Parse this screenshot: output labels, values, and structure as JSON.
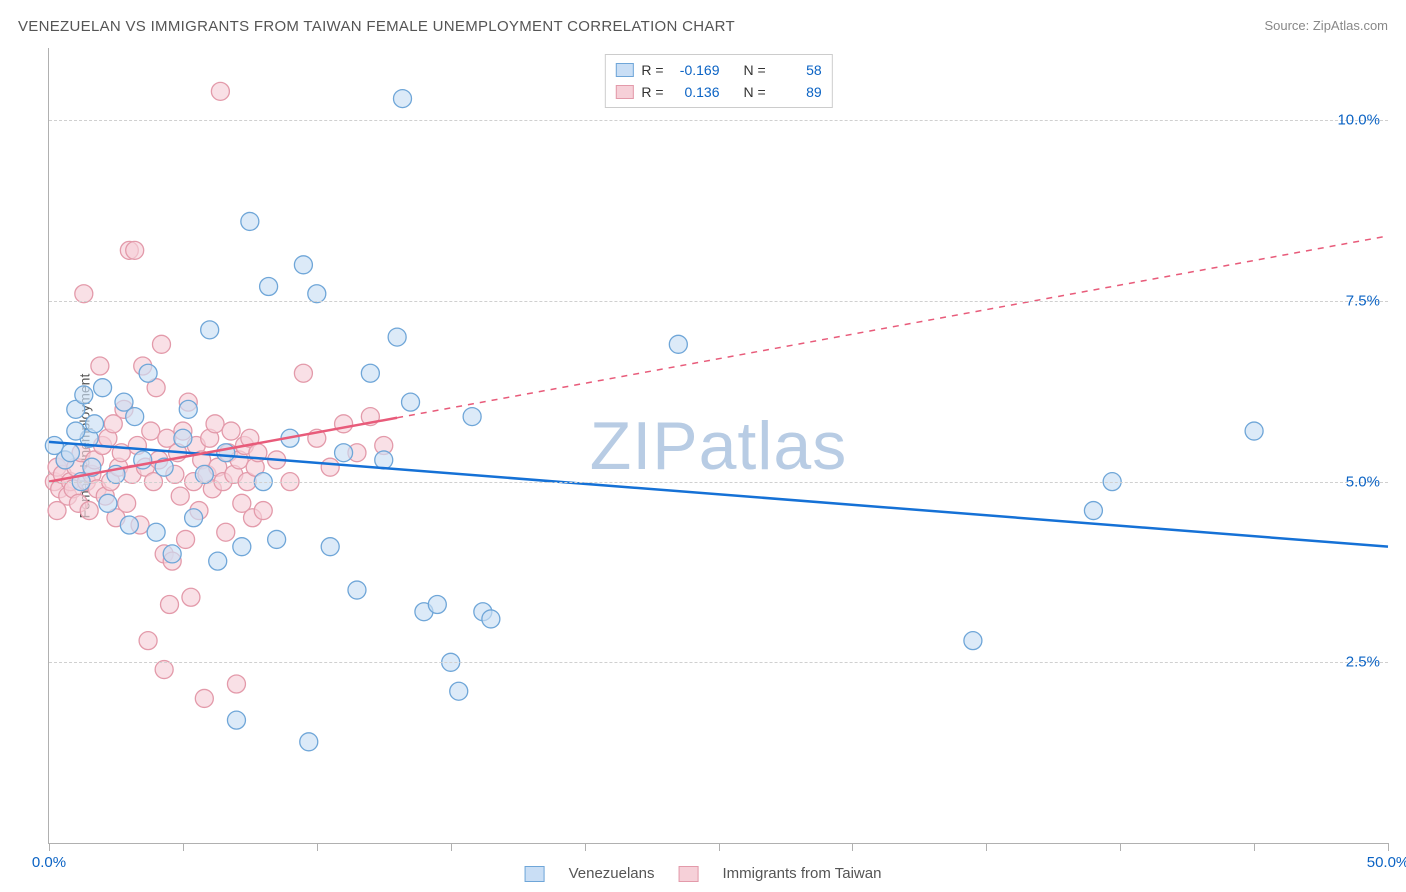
{
  "title": "VENEZUELAN VS IMMIGRANTS FROM TAIWAN FEMALE UNEMPLOYMENT CORRELATION CHART",
  "source": "Source: ZipAtlas.com",
  "y_axis_label": "Female Unemployment",
  "watermark_z": "ZIP",
  "watermark_rest": "atlas",
  "watermark_color": "#b8cce4",
  "chart": {
    "type": "scatter",
    "xlim": [
      0.0,
      50.0
    ],
    "ylim": [
      0.0,
      11.0
    ],
    "y_ticks": [
      2.5,
      5.0,
      7.5,
      10.0
    ],
    "y_tick_labels": [
      "2.5%",
      "5.0%",
      "7.5%",
      "10.0%"
    ],
    "x_ticks": [
      0,
      5,
      10,
      15,
      20,
      25,
      30,
      35,
      40,
      45,
      50
    ],
    "x_min_label": "0.0%",
    "x_max_label": "50.0%",
    "x_label_color": "#0b63c4",
    "y_label_color": "#0b63c4",
    "grid_color": "#d0d0d0",
    "background_color": "#ffffff",
    "marker_radius": 9,
    "marker_stroke_width": 1.3,
    "trend_width": 2.5,
    "series": [
      {
        "key": "venezuelans",
        "label": "Venezuelans",
        "fill": "#c9def5",
        "stroke": "#6fa6d8",
        "swatch_fill": "#c9def5",
        "swatch_border": "#6fa6d8",
        "trend_color": "#1571d6",
        "trend": {
          "x1": 0.0,
          "y1": 5.55,
          "x2": 50.0,
          "y2": 4.1,
          "dash_from_x": 50.0
        },
        "R": "-0.169",
        "N": "58",
        "points": [
          [
            0.2,
            5.5
          ],
          [
            0.6,
            5.3
          ],
          [
            0.8,
            5.4
          ],
          [
            1.0,
            6.0
          ],
          [
            1.2,
            5.0
          ],
          [
            1.5,
            5.6
          ],
          [
            1.6,
            5.2
          ],
          [
            1.7,
            5.8
          ],
          [
            2.0,
            6.3
          ],
          [
            2.2,
            4.7
          ],
          [
            2.5,
            5.1
          ],
          [
            2.8,
            6.1
          ],
          [
            3.0,
            4.4
          ],
          [
            3.2,
            5.9
          ],
          [
            3.5,
            5.3
          ],
          [
            3.7,
            6.5
          ],
          [
            4.0,
            4.3
          ],
          [
            4.3,
            5.2
          ],
          [
            4.6,
            4.0
          ],
          [
            5.0,
            5.6
          ],
          [
            5.2,
            6.0
          ],
          [
            5.4,
            4.5
          ],
          [
            5.8,
            5.1
          ],
          [
            6.0,
            7.1
          ],
          [
            6.3,
            3.9
          ],
          [
            6.6,
            5.4
          ],
          [
            7.0,
            1.7
          ],
          [
            7.2,
            4.1
          ],
          [
            7.5,
            8.6
          ],
          [
            8.0,
            5.0
          ],
          [
            8.2,
            7.7
          ],
          [
            8.5,
            4.2
          ],
          [
            9.0,
            5.6
          ],
          [
            9.5,
            8.0
          ],
          [
            9.7,
            1.4
          ],
          [
            10.0,
            7.6
          ],
          [
            10.5,
            4.1
          ],
          [
            11.0,
            5.4
          ],
          [
            11.5,
            3.5
          ],
          [
            12.0,
            6.5
          ],
          [
            12.5,
            5.3
          ],
          [
            13.0,
            7.0
          ],
          [
            13.2,
            10.3
          ],
          [
            13.5,
            6.1
          ],
          [
            14.0,
            3.2
          ],
          [
            14.5,
            3.3
          ],
          [
            15.0,
            2.5
          ],
          [
            15.3,
            2.1
          ],
          [
            15.8,
            5.9
          ],
          [
            16.2,
            3.2
          ],
          [
            16.5,
            3.1
          ],
          [
            23.5,
            6.9
          ],
          [
            34.5,
            2.8
          ],
          [
            39.0,
            4.6
          ],
          [
            39.7,
            5.0
          ],
          [
            45.0,
            5.7
          ],
          [
            1.0,
            5.7
          ],
          [
            1.3,
            6.2
          ]
        ]
      },
      {
        "key": "taiwan",
        "label": "Immigrants from Taiwan",
        "fill": "#f6d0d8",
        "stroke": "#e39aaa",
        "swatch_fill": "#f6d0d8",
        "swatch_border": "#e39aaa",
        "trend_color": "#e85b7a",
        "trend": {
          "x1": 0.0,
          "y1": 5.0,
          "x2": 50.0,
          "y2": 8.4,
          "dash_from_x": 13.0
        },
        "R": "0.136",
        "N": "89",
        "points": [
          [
            0.2,
            5.0
          ],
          [
            0.3,
            5.2
          ],
          [
            0.4,
            4.9
          ],
          [
            0.5,
            5.1
          ],
          [
            0.6,
            5.3
          ],
          [
            0.7,
            4.8
          ],
          [
            0.8,
            5.0
          ],
          [
            0.9,
            4.9
          ],
          [
            1.0,
            5.2
          ],
          [
            1.1,
            4.7
          ],
          [
            1.2,
            5.4
          ],
          [
            1.3,
            7.6
          ],
          [
            1.4,
            5.0
          ],
          [
            1.5,
            4.6
          ],
          [
            1.6,
            5.1
          ],
          [
            1.7,
            5.3
          ],
          [
            1.8,
            4.9
          ],
          [
            1.9,
            6.6
          ],
          [
            2.0,
            5.5
          ],
          [
            2.1,
            4.8
          ],
          [
            2.2,
            5.6
          ],
          [
            2.3,
            5.0
          ],
          [
            2.4,
            5.8
          ],
          [
            2.5,
            4.5
          ],
          [
            2.6,
            5.2
          ],
          [
            2.7,
            5.4
          ],
          [
            2.8,
            6.0
          ],
          [
            2.9,
            4.7
          ],
          [
            3.0,
            8.2
          ],
          [
            3.1,
            5.1
          ],
          [
            3.2,
            8.2
          ],
          [
            3.3,
            5.5
          ],
          [
            3.4,
            4.4
          ],
          [
            3.5,
            6.6
          ],
          [
            3.6,
            5.2
          ],
          [
            3.7,
            2.8
          ],
          [
            3.8,
            5.7
          ],
          [
            3.9,
            5.0
          ],
          [
            4.0,
            6.3
          ],
          [
            4.1,
            5.3
          ],
          [
            4.2,
            6.9
          ],
          [
            4.3,
            4.0
          ],
          [
            4.4,
            5.6
          ],
          [
            4.5,
            3.3
          ],
          [
            4.6,
            3.9
          ],
          [
            4.7,
            5.1
          ],
          [
            4.8,
            5.4
          ],
          [
            4.9,
            4.8
          ],
          [
            5.0,
            5.7
          ],
          [
            5.1,
            4.2
          ],
          [
            5.2,
            6.1
          ],
          [
            5.3,
            3.4
          ],
          [
            5.4,
            5.0
          ],
          [
            5.5,
            5.5
          ],
          [
            5.6,
            4.6
          ],
          [
            5.7,
            5.3
          ],
          [
            5.8,
            2.0
          ],
          [
            5.9,
            5.1
          ],
          [
            6.0,
            5.6
          ],
          [
            6.1,
            4.9
          ],
          [
            6.2,
            5.8
          ],
          [
            6.3,
            5.2
          ],
          [
            6.4,
            10.4
          ],
          [
            6.5,
            5.0
          ],
          [
            6.6,
            4.3
          ],
          [
            6.7,
            5.4
          ],
          [
            6.8,
            5.7
          ],
          [
            6.9,
            5.1
          ],
          [
            7.0,
            2.2
          ],
          [
            7.1,
            5.3
          ],
          [
            7.2,
            4.7
          ],
          [
            7.3,
            5.5
          ],
          [
            7.4,
            5.0
          ],
          [
            7.5,
            5.6
          ],
          [
            7.6,
            4.5
          ],
          [
            7.7,
            5.2
          ],
          [
            7.8,
            5.4
          ],
          [
            8.0,
            4.6
          ],
          [
            8.5,
            5.3
          ],
          [
            9.0,
            5.0
          ],
          [
            9.5,
            6.5
          ],
          [
            10.0,
            5.6
          ],
          [
            10.5,
            5.2
          ],
          [
            11.0,
            5.8
          ],
          [
            11.5,
            5.4
          ],
          [
            12.0,
            5.9
          ],
          [
            12.5,
            5.5
          ],
          [
            4.3,
            2.4
          ],
          [
            0.3,
            4.6
          ]
        ]
      }
    ]
  },
  "corr_legend": {
    "r_label": "R =",
    "n_label": "N ="
  }
}
